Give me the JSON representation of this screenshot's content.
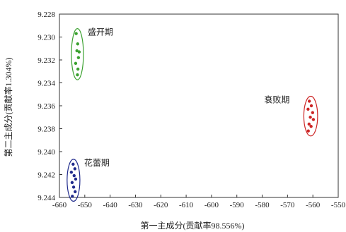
{
  "chart_data": {
    "type": "scatter",
    "title": "",
    "xlabel": "第一主成分(贡献率98.556%)",
    "ylabel": "第二主成分(贡献率1.304%)",
    "xlim": [
      -660,
      -550
    ],
    "ylim": [
      9.228,
      9.244
    ],
    "y_inverted": true,
    "grid": false,
    "xticks": [
      -660,
      -650,
      -640,
      -630,
      -620,
      -610,
      -600,
      -590,
      -580,
      -570,
      -560,
      -550
    ],
    "yticks": [
      9.228,
      9.23,
      9.232,
      9.234,
      9.236,
      9.238,
      9.24,
      9.242,
      9.244
    ],
    "xtick_labels": [
      "-660",
      "-650",
      "-640",
      "-630",
      "-620",
      "-610",
      "-600",
      "-590",
      "-580",
      "-570",
      "-560",
      "-550"
    ],
    "ytick_labels": [
      "9.228",
      "9.230",
      "9.232",
      "9.234",
      "9.236",
      "9.238",
      "9.240",
      "9.242",
      "9.244"
    ],
    "groups": [
      {
        "label": "盛开期",
        "color": "#3aa12f",
        "points": [
          {
            "x": -653.4,
            "y": 9.2297
          },
          {
            "x": -652.8,
            "y": 9.2306
          },
          {
            "x": -653.1,
            "y": 9.2312
          },
          {
            "x": -652.5,
            "y": 9.2318
          },
          {
            "x": -652.2,
            "y": 9.2313
          },
          {
            "x": -653.6,
            "y": 9.2323
          },
          {
            "x": -652.7,
            "y": 9.2328
          },
          {
            "x": -652.9,
            "y": 9.2333
          }
        ]
      },
      {
        "label": "衰败期",
        "color": "#cc2424",
        "points": [
          {
            "x": -561.4,
            "y": 9.2356
          },
          {
            "x": -560.6,
            "y": 9.236
          },
          {
            "x": -561.9,
            "y": 9.2363
          },
          {
            "x": -560.1,
            "y": 9.2366
          },
          {
            "x": -561.0,
            "y": 9.237
          },
          {
            "x": -559.8,
            "y": 9.2372
          },
          {
            "x": -561.5,
            "y": 9.2376
          },
          {
            "x": -560.7,
            "y": 9.2378
          },
          {
            "x": -561.8,
            "y": 9.2382
          }
        ]
      },
      {
        "label": "花蕾期",
        "color": "#1f2a8c",
        "points": [
          {
            "x": -654.6,
            "y": 9.2411
          },
          {
            "x": -653.9,
            "y": 9.2415
          },
          {
            "x": -655.3,
            "y": 9.2418
          },
          {
            "x": -654.2,
            "y": 9.2421
          },
          {
            "x": -653.6,
            "y": 9.2424
          },
          {
            "x": -655.0,
            "y": 9.2427
          },
          {
            "x": -654.4,
            "y": 9.2431
          },
          {
            "x": -653.8,
            "y": 9.2435
          },
          {
            "x": -654.9,
            "y": 9.2439
          }
        ]
      }
    ]
  }
}
